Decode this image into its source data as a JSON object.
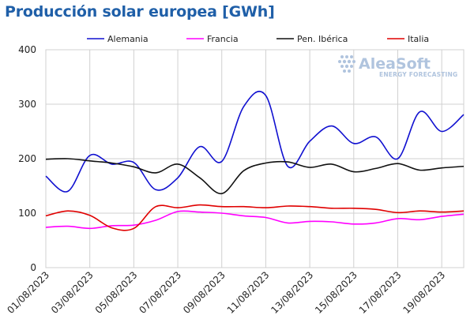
{
  "page": {
    "title": "Producción solar europea [GWh]",
    "title_color": "#1f5fa8",
    "logo": {
      "name": "AleaSoft",
      "tagline": "ENERGY FORECASTING",
      "color": "#b0c4de",
      "icon": "aleasoft-dots-logo"
    }
  },
  "chart_data": {
    "type": "line",
    "title": "Producción solar europea [GWh]",
    "xlabel": "",
    "ylabel": "",
    "ylim": [
      0,
      400
    ],
    "yticks": [
      0,
      100,
      200,
      300,
      400
    ],
    "grid": true,
    "legend_position": "top",
    "x": [
      "01/08/2023",
      "02/08/2023",
      "03/08/2023",
      "04/08/2023",
      "05/08/2023",
      "06/08/2023",
      "07/08/2023",
      "08/08/2023",
      "09/08/2023",
      "10/08/2023",
      "11/08/2023",
      "12/08/2023",
      "13/08/2023",
      "14/08/2023",
      "15/08/2023",
      "16/08/2023",
      "17/08/2023",
      "18/08/2023",
      "19/08/2023",
      "20/08/2023"
    ],
    "xtick_labels": [
      "01/08/2023",
      "03/08/2023",
      "05/08/2023",
      "07/08/2023",
      "09/08/2023",
      "11/08/2023",
      "13/08/2023",
      "15/08/2023",
      "17/08/2023",
      "19/08/2023"
    ],
    "series": [
      {
        "name": "Alemania",
        "color": "#1010d0",
        "values": [
          168,
          140,
          206,
          190,
          193,
          143,
          165,
          222,
          195,
          296,
          316,
          186,
          232,
          260,
          228,
          240,
          200,
          286,
          250,
          281
        ]
      },
      {
        "name": "Francia",
        "color": "#ff00ff",
        "values": [
          74,
          76,
          72,
          77,
          78,
          87,
          103,
          102,
          100,
          95,
          92,
          82,
          85,
          84,
          80,
          82,
          90,
          88,
          94,
          98
        ]
      },
      {
        "name": "Pen. Ibérica",
        "color": "#111111",
        "values": [
          199,
          200,
          196,
          192,
          185,
          174,
          190,
          165,
          136,
          178,
          192,
          194,
          184,
          190,
          176,
          182,
          191,
          179,
          183,
          186
        ]
      },
      {
        "name": "Italia",
        "color": "#e00000",
        "values": [
          95,
          104,
          96,
          73,
          72,
          112,
          110,
          115,
          112,
          112,
          110,
          113,
          112,
          109,
          109,
          107,
          101,
          104,
          102,
          104
        ]
      }
    ]
  }
}
